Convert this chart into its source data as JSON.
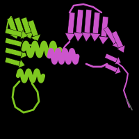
{
  "background_color": "#000000",
  "fig_size": [
    2.0,
    2.0
  ],
  "dpi": 100,
  "copy1_color": "#7ec820",
  "copy2_color": "#cc55cc",
  "gray_color": "#666666"
}
